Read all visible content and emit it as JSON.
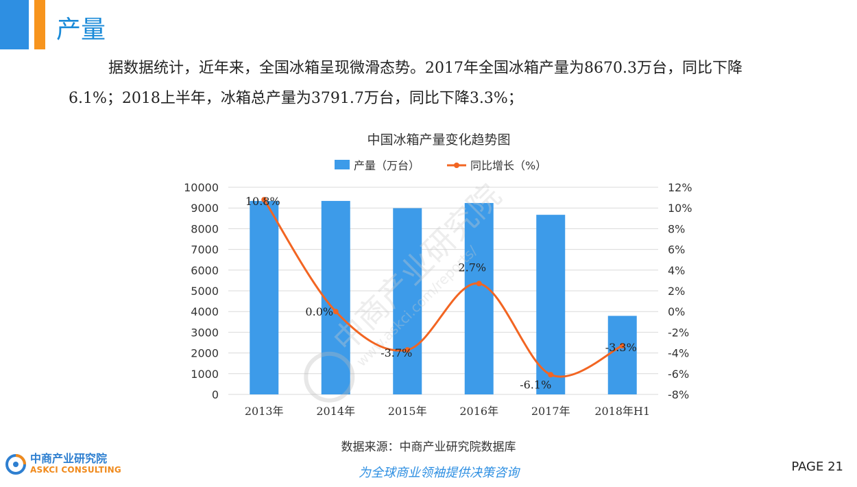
{
  "header": {
    "title": "产量"
  },
  "paragraph": {
    "text": "据数据统计，近年来，全国冰箱呈现微滑态势。2017年全国冰箱产量为8670.3万台，同比下降6.1%；2018上半年，冰箱总产量为3791.7万台，同比下降3.3%；"
  },
  "chart_data": {
    "type": "bar+line",
    "title": "中国冰箱产量变化趋势图",
    "categories": [
      "2013年",
      "2014年",
      "2015年",
      "2016年",
      "2017年",
      "2018年H1"
    ],
    "series": [
      {
        "name": "产量（万台）",
        "type": "bar",
        "axis": "left",
        "color": "#3d9be9",
        "values": [
          9340,
          9340,
          8990,
          9240,
          8670.3,
          3791.7
        ]
      },
      {
        "name": "同比增长（%）",
        "type": "line",
        "axis": "right",
        "color": "#f26522",
        "values": [
          10.8,
          0.0,
          -3.7,
          2.7,
          -6.1,
          -3.3
        ],
        "labels": [
          "10.8%",
          "0.0%",
          "-3.7%",
          "2.7%",
          "-6.1%",
          "-3.3%"
        ]
      }
    ],
    "y_left": {
      "min": 0,
      "max": 10000,
      "step": 1000,
      "ticks": [
        "0",
        "1000",
        "2000",
        "3000",
        "4000",
        "5000",
        "6000",
        "7000",
        "8000",
        "9000",
        "10000"
      ]
    },
    "y_right": {
      "min": -8,
      "max": 12,
      "step": 2,
      "ticks": [
        "-8%",
        "-6%",
        "-4%",
        "-2%",
        "0%",
        "2%",
        "4%",
        "6%",
        "8%",
        "10%",
        "12%"
      ]
    },
    "grid": true,
    "legend": "top-center"
  },
  "watermark": {
    "cn": "中商产业研究院",
    "url": "www.askci.com/reports/"
  },
  "footer": {
    "source": "数据来源：中商产业研究院数据库",
    "slogan": "为全球商业领袖提供决策咨询",
    "page": "PAGE 21",
    "logo_cn": "中商产业研究院",
    "logo_en": "ASKCI CONSULTING"
  }
}
